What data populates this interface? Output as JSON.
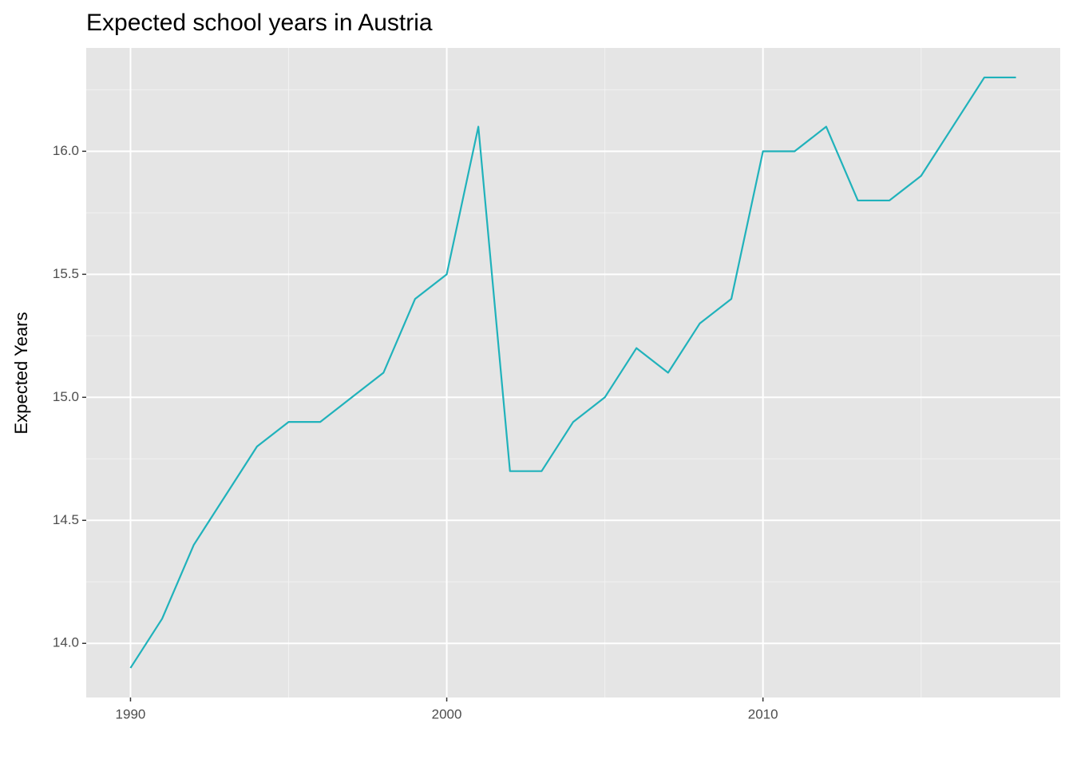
{
  "chart_data": {
    "type": "line",
    "title": "Expected school years in Austria",
    "y_label": "Expected Years",
    "x": [
      1990,
      1991,
      1992,
      1993,
      1994,
      1995,
      1996,
      1997,
      1998,
      1999,
      2000,
      2001,
      2002,
      2003,
      2004,
      2005,
      2006,
      2007,
      2008,
      2009,
      2010,
      2011,
      2012,
      2013,
      2014,
      2015,
      2016,
      2017,
      2018
    ],
    "series": [
      {
        "color": "#20b2bb",
        "values": [
          13.9,
          14.1,
          14.4,
          14.6,
          14.8,
          14.9,
          14.9,
          15.0,
          15.1,
          15.4,
          15.5,
          16.1,
          14.7,
          14.7,
          14.9,
          15.0,
          15.2,
          15.1,
          15.3,
          15.4,
          16.0,
          16.0,
          16.1,
          15.8,
          15.8,
          15.9,
          16.1,
          16.3,
          16.3
        ]
      }
    ],
    "xlim": [
      1988.6,
      2019.4
    ],
    "xticks": [
      1990,
      2000,
      2010
    ],
    "x_minor_grid": [
      1995,
      2005,
      2015
    ],
    "ylim": [
      13.78,
      16.42
    ],
    "yticks": [
      {
        "value": 14,
        "label": "14.0"
      },
      14.5,
      {
        "value": 15,
        "label": "15.0"
      },
      15.5,
      {
        "value": 16,
        "label": "16.0"
      }
    ],
    "y_minor_grid": [
      14.25,
      14.75,
      15.25,
      15.75,
      16.25
    ],
    "grid": true
  }
}
